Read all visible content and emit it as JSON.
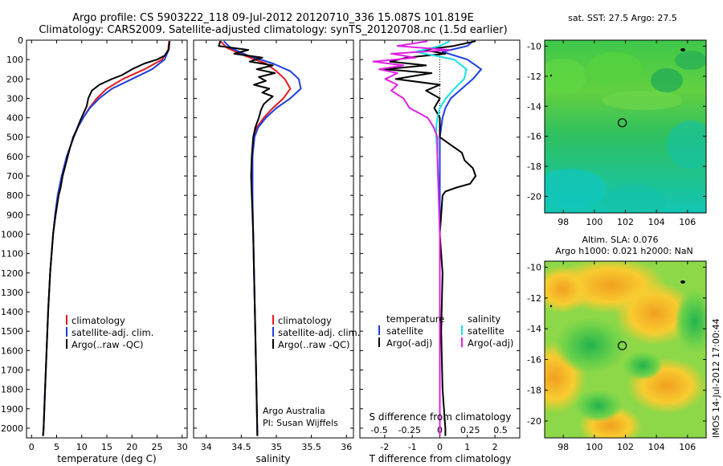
{
  "header": {
    "line1": "Argo profile: CS 5903222_118 09-Jul-2012 20120710_336 15.087S 101.819E",
    "line2": "Climatology: CARS2009. Satellite-adjusted climatology: synTS_20120708.nc (1.5d earlier)"
  },
  "depth_ticks": [
    "0",
    "100",
    "200",
    "300",
    "400",
    "500",
    "600",
    "700",
    "800",
    "900",
    "1000",
    "1100",
    "1200",
    "1300",
    "1400",
    "1500",
    "1600",
    "1700",
    "1800",
    "1900",
    "2000"
  ],
  "colors": {
    "climatology": "#e41a1c",
    "satellite": "#1f3fe0",
    "argo": "#000000",
    "salinity_sat": "#19e0e8",
    "salinity_argo": "#e020e0"
  },
  "chart_data": [
    {
      "type": "line",
      "xlabel": "temperature (deg C)",
      "xticks": [
        "0",
        "5",
        "10",
        "15",
        "20",
        "25",
        "30"
      ],
      "xlim": [
        -1,
        31
      ],
      "ylim": [
        0,
        2050
      ],
      "legend": [
        "climatology",
        "satellite-adj. clim.",
        "Argo(..raw -QC)"
      ],
      "series": [
        {
          "name": "climatology",
          "depth": [
            5,
            50,
            100,
            150,
            200,
            250,
            300,
            350,
            400,
            450,
            500,
            600,
            700,
            800,
            900,
            1000,
            1200,
            1400,
            1600,
            1800,
            2000,
            2040
          ],
          "values": [
            27.4,
            27.2,
            26.0,
            22.5,
            18.2,
            15.0,
            13.0,
            11.5,
            10.3,
            9.2,
            8.4,
            7.0,
            6.0,
            5.2,
            4.7,
            4.3,
            3.7,
            3.3,
            3.0,
            2.7,
            2.4,
            2.3
          ]
        },
        {
          "name": "satellite-adj. clim.",
          "depth": [
            5,
            50,
            100,
            150,
            200,
            250,
            300,
            350,
            400,
            450,
            500,
            600,
            700,
            800,
            900,
            1000,
            1200,
            1400,
            1600,
            1800,
            2000,
            2040
          ],
          "values": [
            27.5,
            27.3,
            26.5,
            24.0,
            20.0,
            16.0,
            13.5,
            11.6,
            10.3,
            9.2,
            8.4,
            7.0,
            6.0,
            5.2,
            4.7,
            4.3,
            3.7,
            3.3,
            3.0,
            2.7,
            2.4,
            2.3
          ]
        },
        {
          "name": "Argo(..raw -QC)",
          "depth": [
            5,
            50,
            80,
            100,
            120,
            150,
            180,
            200,
            230,
            260,
            300,
            340,
            380,
            420,
            460,
            500,
            560,
            640,
            700,
            760,
            800,
            900,
            1000,
            1200,
            1400,
            1600,
            1800,
            2000,
            2040
          ],
          "values": [
            27.5,
            27.3,
            26.5,
            25.0,
            22.5,
            20.0,
            18.0,
            16.0,
            13.5,
            12.0,
            11.3,
            11.0,
            10.3,
            9.6,
            9.0,
            8.3,
            7.6,
            6.8,
            6.2,
            5.8,
            5.4,
            4.8,
            4.3,
            3.7,
            3.3,
            3.0,
            2.7,
            2.4,
            2.3
          ]
        }
      ]
    },
    {
      "type": "line",
      "xlabel": "salinity",
      "xticks": [
        "34",
        "34.5",
        "35",
        "35.5",
        "36"
      ],
      "xlim": [
        33.82,
        36.1
      ],
      "ylim": [
        0,
        2050
      ],
      "legend": [
        "climatology",
        "satellite-adj. clim.",
        "Argo(..raw -QC)"
      ],
      "annotation": [
        "Argo Australia",
        "PI: Susan Wijffels"
      ],
      "series": [
        {
          "name": "climatology",
          "depth": [
            5,
            40,
            80,
            120,
            160,
            200,
            250,
            300,
            350,
            400,
            450,
            500,
            600,
            800,
            1000,
            1500,
            2040
          ],
          "values": [
            34.2,
            34.3,
            34.55,
            34.85,
            35.0,
            35.12,
            35.2,
            35.1,
            34.95,
            34.82,
            34.72,
            34.68,
            34.66,
            34.66,
            34.67,
            34.7,
            34.73
          ]
        },
        {
          "name": "satellite-adj. clim.",
          "depth": [
            5,
            40,
            80,
            120,
            160,
            200,
            250,
            300,
            350,
            400,
            450,
            500,
            600,
            800,
            1000,
            1500,
            2040
          ],
          "values": [
            34.25,
            34.35,
            34.6,
            34.95,
            35.2,
            35.32,
            35.35,
            35.2,
            35.0,
            34.85,
            34.74,
            34.69,
            34.66,
            34.66,
            34.67,
            34.7,
            34.73
          ]
        },
        {
          "name": "Argo(..raw -QC)",
          "depth": [
            5,
            30,
            50,
            70,
            90,
            110,
            130,
            150,
            170,
            190,
            210,
            230,
            250,
            270,
            290,
            310,
            330,
            360,
            400,
            450,
            500,
            600,
            700,
            800,
            1000,
            1500,
            2040
          ],
          "values": [
            34.2,
            34.18,
            34.6,
            34.4,
            34.8,
            34.62,
            34.95,
            34.72,
            34.98,
            34.75,
            34.85,
            34.68,
            34.9,
            34.8,
            34.95,
            34.88,
            34.82,
            34.78,
            34.75,
            34.7,
            34.67,
            34.65,
            34.64,
            34.65,
            34.67,
            34.7,
            34.73
          ]
        }
      ]
    },
    {
      "type": "line",
      "xlabel": "T difference from climatology",
      "top_label": "S difference from climatology",
      "xticks": [
        "-2",
        "-1",
        "0",
        "1",
        "2"
      ],
      "sticks": [
        "-0.5",
        "-0.25",
        "0",
        "0.25",
        "0.5"
      ],
      "xlim": [
        -2.9,
        2.9
      ],
      "ylim": [
        0,
        2050
      ],
      "legend_left": {
        "heading": "temperature",
        "items": [
          "satellite",
          "Argo(-adj)"
        ]
      },
      "legend_right": {
        "heading": "salinity",
        "items": [
          "satellite",
          "Argo(-adj)"
        ]
      },
      "series": [
        {
          "name": "temperature satellite",
          "depth": [
            5,
            30,
            60,
            100,
            150,
            200,
            250,
            300,
            350,
            400,
            450,
            500,
            600,
            800,
            1000,
            1500,
            2040
          ],
          "values": [
            1.2,
            1.0,
            0.1,
            1.0,
            1.5,
            1.2,
            0.8,
            0.4,
            0.2,
            0.1,
            0.05,
            0.0,
            0.0,
            0.0,
            0.0,
            0.0,
            0.0
          ]
        },
        {
          "name": "temperature Argo(-adj)",
          "depth": [
            5,
            30,
            50,
            70,
            90,
            110,
            130,
            150,
            170,
            200,
            230,
            260,
            300,
            350,
            400,
            450,
            500,
            540,
            580,
            620,
            660,
            700,
            740,
            760,
            780,
            800,
            900,
            1000,
            1200,
            1500,
            1800,
            2000,
            2040
          ],
          "values": [
            1.3,
            0.5,
            -0.6,
            0.2,
            -1.2,
            -1.8,
            -0.5,
            -2.0,
            -0.3,
            -1.6,
            0.0,
            -0.5,
            0.0,
            -0.2,
            0.0,
            0.0,
            0.0,
            0.4,
            0.8,
            0.9,
            1.2,
            1.3,
            1.1,
            0.6,
            0.2,
            0.1,
            0.05,
            0.0,
            0.1,
            0.05,
            0.1,
            0.2,
            0.2
          ]
        },
        {
          "name": "salinity satellite",
          "depth": [
            5,
            30,
            60,
            100,
            150,
            200,
            250,
            300,
            350,
            400,
            450,
            500,
            600,
            800,
            1000,
            1500,
            2040
          ],
          "values": [
            0.08,
            0.0,
            -0.2,
            0.12,
            0.22,
            0.2,
            0.12,
            0.05,
            0.0,
            -0.02,
            -0.03,
            -0.03,
            -0.02,
            -0.01,
            0.0,
            0.0,
            0.0
          ]
        },
        {
          "name": "salinity Argo(-adj)",
          "depth": [
            5,
            30,
            50,
            70,
            90,
            110,
            130,
            150,
            170,
            200,
            230,
            260,
            300,
            350,
            400,
            450,
            500,
            600,
            800,
            1000,
            1500,
            2040
          ],
          "values": [
            -0.1,
            -0.35,
            0.08,
            -0.4,
            -0.2,
            -0.55,
            -0.3,
            -0.5,
            -0.35,
            -0.45,
            -0.35,
            -0.4,
            -0.3,
            -0.25,
            -0.1,
            -0.05,
            -0.02,
            -0.02,
            -0.01,
            0.0,
            0.0,
            0.0
          ]
        }
      ]
    },
    {
      "type": "heatmap",
      "title": "sat. SST: 27.5 Argo: 27.5",
      "xticks": [
        "98",
        "100",
        "102",
        "104",
        "106"
      ],
      "yticks": [
        "-10",
        "-12",
        "-14",
        "-16",
        "-18",
        "-20"
      ],
      "xlim": [
        96.8,
        107.2
      ],
      "ylim": [
        -21.1,
        -9.6
      ],
      "marker": {
        "lon": 101.8,
        "lat": -15.1
      }
    },
    {
      "type": "heatmap",
      "title": "Altim. SLA: 0.076",
      "subtitle": "Argo h1000: 0.021 h2000: NaN",
      "xticks": [
        "98",
        "100",
        "102",
        "104",
        "106"
      ],
      "yticks": [
        "-10",
        "-12",
        "-14",
        "-16",
        "-18",
        "-20"
      ],
      "xlim": [
        96.8,
        107.2
      ],
      "ylim": [
        -21.1,
        -9.6
      ],
      "marker": {
        "lon": 101.8,
        "lat": -15.1
      }
    }
  ],
  "footer": {
    "stamp": "IMOS 14-Jul-2012 17:00:44"
  }
}
